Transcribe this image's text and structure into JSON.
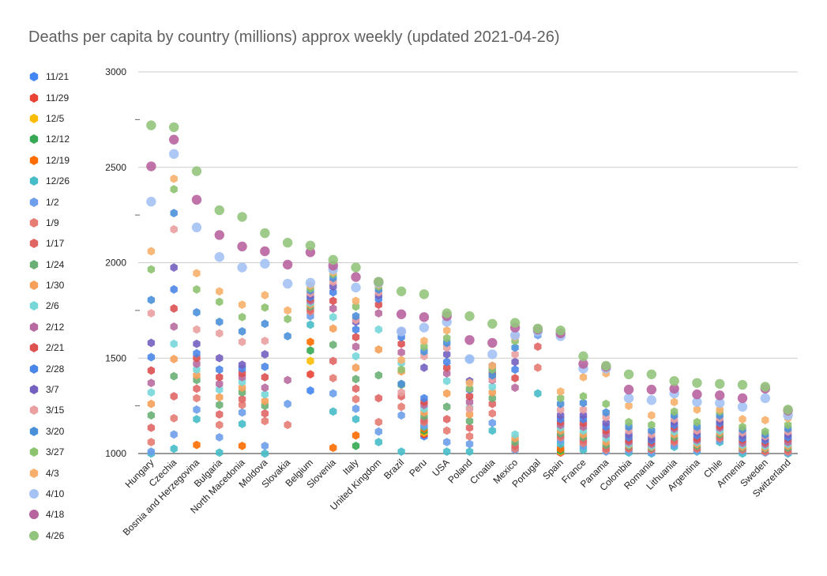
{
  "chart_data": {
    "type": "scatter",
    "title": "Deaths per capita by country (millions) approx weekly (updated 2021-04-26)",
    "xlabel": "",
    "ylabel": "",
    "ylim": [
      1000,
      3000
    ],
    "yticks": [
      1000,
      1500,
      2000,
      2500,
      3000
    ],
    "grid": true,
    "legend_position": "left",
    "categories": [
      "Hungary",
      "Czechia",
      "Bosnia and Herzegovina",
      "Bulgaria",
      "North Macedonia",
      "Moldova",
      "Slovakia",
      "Belgium",
      "Slovenia",
      "Italy",
      "United Kingdom",
      "Brazil",
      "Peru",
      "USA",
      "Poland",
      "Croatia",
      "Mexico",
      "Portugal",
      "Spain",
      "France",
      "Panama",
      "Colombia",
      "Romania",
      "Lithuania",
      "Argentina",
      "Chile",
      "Armenia",
      "Sweden",
      "Switzerland"
    ],
    "series": [
      {
        "name": "11/21",
        "color": "#4285f4",
        "shape": "hexagon",
        "values": [
          null,
          null,
          null,
          null,
          null,
          null,
          null,
          1330,
          null,
          null,
          null,
          null,
          1090,
          null,
          null,
          null,
          null,
          null,
          null,
          null,
          null,
          null,
          null,
          null,
          null,
          null,
          null,
          null,
          null
        ]
      },
      {
        "name": "11/29",
        "color": "#ea4335",
        "shape": "hexagon",
        "values": [
          null,
          null,
          null,
          null,
          null,
          null,
          null,
          1415,
          null,
          null,
          null,
          null,
          1100,
          null,
          null,
          null,
          null,
          null,
          1005,
          null,
          null,
          null,
          null,
          null,
          null,
          null,
          null,
          null,
          null
        ]
      },
      {
        "name": "12/5",
        "color": "#fbbc04",
        "shape": "hexagon",
        "values": [
          null,
          null,
          null,
          null,
          null,
          null,
          null,
          1485,
          null,
          null,
          null,
          null,
          1110,
          null,
          null,
          null,
          null,
          null,
          1010,
          null,
          null,
          null,
          null,
          null,
          null,
          null,
          null,
          null,
          null
        ]
      },
      {
        "name": "12/12",
        "color": "#34a853",
        "shape": "hexagon",
        "values": [
          null,
          null,
          null,
          null,
          null,
          null,
          null,
          1540,
          null,
          1040,
          null,
          null,
          1120,
          null,
          null,
          null,
          null,
          null,
          1015,
          null,
          null,
          null,
          null,
          null,
          null,
          null,
          null,
          null,
          null
        ]
      },
      {
        "name": "12/19",
        "color": "#ff6d01",
        "shape": "hexagon",
        "values": [
          null,
          null,
          1045,
          null,
          1040,
          null,
          null,
          1585,
          1030,
          1095,
          null,
          null,
          1130,
          null,
          null,
          null,
          null,
          null,
          1025,
          null,
          null,
          null,
          null,
          null,
          null,
          null,
          null,
          null,
          null
        ]
      },
      {
        "name": "12/26",
        "color": "#46bdc6",
        "shape": "hexagon",
        "values": [
          1000,
          1025,
          1180,
          1005,
          1155,
          1000,
          null,
          1675,
          1220,
          1180,
          1060,
          1010,
          1140,
          1010,
          1010,
          1120,
          null,
          1315,
          1050,
          1020,
          null,
          1005,
          1000,
          1035,
          1010,
          1060,
          1000,
          null,
          1000
        ]
      },
      {
        "name": "1/2",
        "color": "#6d9eeb",
        "shape": "hexagon",
        "values": [
          1010,
          1100,
          1230,
          1085,
          1215,
          1040,
          1260,
          1720,
          1315,
          1235,
          1115,
          1200,
          1150,
          1060,
          1050,
          1160,
          1020,
          1620,
          1070,
          1040,
          1010,
          1015,
          1005,
          1045,
          1015,
          1070,
          1015,
          1005,
          1005
        ]
      },
      {
        "name": "1/9",
        "color": "#e67c73",
        "shape": "hexagon",
        "values": [
          1060,
          1185,
          1290,
          1150,
          1255,
          1170,
          1150,
          1745,
          1395,
          1285,
          1165,
          1245,
          1165,
          1120,
          1090,
          1210,
          1025,
          1450,
          1085,
          1055,
          1020,
          1025,
          1020,
          1060,
          1025,
          1080,
          1020,
          1010,
          1010
        ]
      },
      {
        "name": "1/17",
        "color": "#e06666",
        "shape": "hexagon",
        "values": [
          1135,
          1300,
          1340,
          1205,
          1285,
          1210,
          null,
          1755,
          1485,
          1340,
          1290,
          1300,
          1175,
          1180,
          1135,
          1260,
          1040,
          1560,
          1095,
          1070,
          1030,
          1030,
          1025,
          1070,
          1030,
          1090,
          1025,
          1015,
          1020
        ]
      },
      {
        "name": "1/24",
        "color": "#6aaf76",
        "shape": "hexagon",
        "values": [
          1200,
          1405,
          1385,
          1255,
          1320,
          1250,
          null,
          1770,
          1570,
          1390,
          1410,
          1360,
          1195,
          1245,
          1170,
          1290,
          1060,
          null,
          1105,
          1085,
          1045,
          1040,
          1030,
          1085,
          1040,
          1100,
          1030,
          1025,
          1030
        ]
      },
      {
        "name": "1/30",
        "color": "#f6a05a",
        "shape": "hexagon",
        "values": [
          1260,
          1495,
          1410,
          1295,
          1345,
          1275,
          null,
          1780,
          1655,
          1450,
          1545,
          1430,
          1215,
          1315,
          1205,
          1320,
          1080,
          null,
          1120,
          1100,
          1060,
          1045,
          1035,
          1100,
          1050,
          1110,
          1035,
          1030,
          1040
        ]
      },
      {
        "name": "2/6",
        "color": "#76d7d9",
        "shape": "hexagon",
        "values": [
          1320,
          1575,
          1440,
          1335,
          1375,
          1310,
          null,
          1790,
          1715,
          1510,
          1650,
          1475,
          1235,
          1380,
          1240,
          1350,
          1100,
          null,
          1135,
          1120,
          1080,
          1050,
          1040,
          1115,
          1060,
          1120,
          1045,
          1040,
          1050
        ]
      },
      {
        "name": "2/12",
        "color": "#b86ba0",
        "shape": "hexagon",
        "values": [
          1370,
          1665,
          1470,
          1365,
          1400,
          1345,
          1385,
          1800,
          1760,
          1560,
          1735,
          1530,
          1255,
          1420,
          1270,
          1385,
          1345,
          null,
          1150,
          1140,
          1100,
          1060,
          1050,
          1130,
          1070,
          1135,
          1055,
          1050,
          1060
        ]
      },
      {
        "name": "2/21",
        "color": "#dc5050",
        "shape": "hexagon",
        "values": [
          1435,
          1760,
          1500,
          1400,
          1420,
          1400,
          null,
          1810,
          1800,
          1610,
          1780,
          1575,
          1270,
          1450,
          1300,
          1420,
          1395,
          null,
          1165,
          1160,
          1120,
          1070,
          1060,
          1140,
          1080,
          1145,
          1070,
          1060,
          1075
        ]
      },
      {
        "name": "2/28",
        "color": "#4a86e8",
        "shape": "hexagon",
        "values": [
          1505,
          1860,
          1525,
          1440,
          1445,
          1455,
          null,
          1820,
          1845,
          1650,
          1810,
          1610,
          1290,
          1480,
          1335,
          1440,
          1440,
          null,
          1180,
          1180,
          1140,
          1085,
          1070,
          1150,
          1095,
          1160,
          1080,
          1070,
          1085
        ]
      },
      {
        "name": "3/7",
        "color": "#7460c0",
        "shape": "hexagon",
        "values": [
          1580,
          1975,
          1575,
          1500,
          1465,
          1520,
          null,
          1830,
          1875,
          1690,
          1830,
          1640,
          1450,
          1520,
          1380,
          1460,
          1480,
          null,
          1200,
          1200,
          1160,
          1100,
          1080,
          1165,
          1110,
          1170,
          1095,
          1080,
          1100
        ]
      },
      {
        "name": "3/15",
        "color": "#eaa0a0",
        "shape": "hexagon",
        "values": [
          1735,
          2175,
          1650,
          1630,
          1585,
          1590,
          null,
          1840,
          1900,
          1700,
          1845,
          1320,
          1510,
          1555,
          1235,
          1390,
          1520,
          null,
          1230,
          1230,
          1190,
          1120,
          1100,
          1180,
          1120,
          1185,
          1110,
          1090,
          1115
        ]
      },
      {
        "name": "3/20",
        "color": "#4a90d9",
        "shape": "hexagon",
        "values": [
          1805,
          2260,
          1740,
          1690,
          1640,
          1680,
          1615,
          1855,
          1920,
          1720,
          1860,
          1365,
          1535,
          1580,
          1495,
          1410,
          1555,
          null,
          1260,
          1265,
          1215,
          1140,
          1120,
          1200,
          1140,
          1200,
          1125,
          1100,
          1130
        ]
      },
      {
        "name": "3/27",
        "color": "#8dc26f",
        "shape": "hexagon",
        "values": [
          1965,
          2385,
          1860,
          1795,
          1715,
          1765,
          1705,
          1865,
          1940,
          1770,
          1875,
          1440,
          1560,
          1605,
          1340,
          1440,
          1590,
          null,
          1290,
          1300,
          1260,
          1165,
          1150,
          1220,
          1165,
          1220,
          1140,
          1115,
          1150
        ]
      },
      {
        "name": "4/3",
        "color": "#f7b06b",
        "shape": "hexagon",
        "values": [
          2060,
          2440,
          1945,
          1850,
          1780,
          1830,
          1750,
          1880,
          1950,
          1800,
          1885,
          1490,
          1590,
          1645,
          1370,
          1460,
          1610,
          null,
          1325,
          1400,
          1420,
          1250,
          1200,
          1270,
          1230,
          1230,
          1180,
          1175,
          1185
        ]
      },
      {
        "name": "4/10",
        "color": "#a4c2f4",
        "shape": "hexagon",
        "values": [
          2320,
          2570,
          2185,
          2030,
          1975,
          1995,
          1890,
          1895,
          1965,
          1870,
          1895,
          1640,
          1660,
          1690,
          1495,
          1520,
          1620,
          1640,
          1615,
          1445,
          1445,
          1290,
          1280,
          1315,
          1270,
          1265,
          1245,
          1290,
          1200
        ]
      },
      {
        "name": "4/18",
        "color": "#b8649e",
        "shape": "hexagon",
        "values": [
          2505,
          2645,
          2330,
          2145,
          2085,
          2060,
          1990,
          2055,
          1985,
          1925,
          1900,
          1730,
          1715,
          1720,
          1595,
          1580,
          1660,
          1650,
          1630,
          1470,
          1455,
          1335,
          1335,
          1340,
          1310,
          1305,
          1290,
          1340,
          1225
        ]
      },
      {
        "name": "4/26",
        "color": "#93c47d",
        "shape": "hexagon",
        "values": [
          2720,
          2710,
          2480,
          2275,
          2240,
          2155,
          2105,
          2090,
          2015,
          1975,
          1900,
          1850,
          1835,
          1735,
          1720,
          1680,
          1685,
          1655,
          1645,
          1510,
          1460,
          1415,
          1415,
          1380,
          1370,
          1365,
          1360,
          1350,
          1230
        ]
      }
    ]
  }
}
